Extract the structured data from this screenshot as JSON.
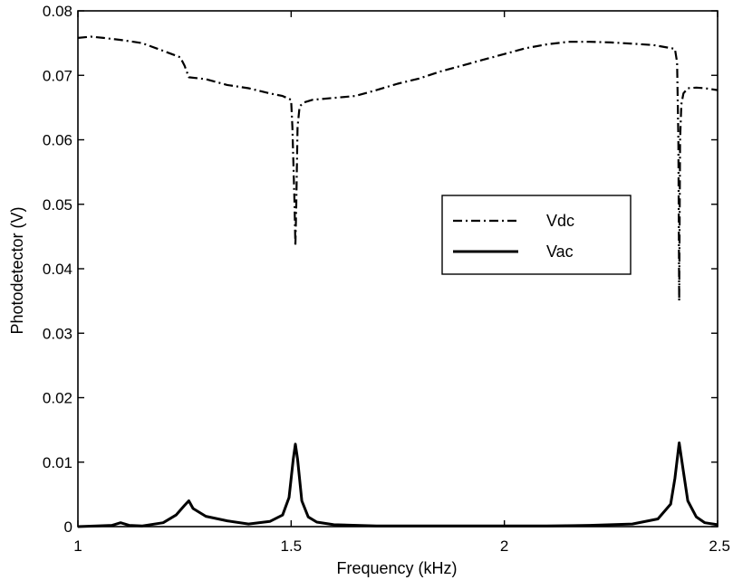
{
  "chart_data": {
    "type": "line",
    "title": "",
    "xlabel": "Frequency (kHz)",
    "ylabel": "Photodetector (V)",
    "xlim": [
      1,
      2.5
    ],
    "ylim": [
      0,
      0.08
    ],
    "xticks": [
      1,
      1.5,
      2,
      2.5
    ],
    "xtick_labels": [
      "1",
      "1.5",
      "2",
      "2.5"
    ],
    "yticks": [
      0,
      0.01,
      0.02,
      0.03,
      0.04,
      0.05,
      0.06,
      0.07,
      0.08
    ],
    "ytick_labels": [
      "0",
      "0.01",
      "0.02",
      "0.03",
      "0.04",
      "0.05",
      "0.06",
      "0.07",
      "0.08"
    ],
    "grid": false,
    "legend_position": "center-right",
    "series": [
      {
        "name": "Vdc",
        "line_style": "dash-dot",
        "color": "#000000",
        "x": [
          1.0,
          1.03,
          1.06,
          1.1,
          1.15,
          1.2,
          1.24,
          1.25,
          1.26,
          1.3,
          1.35,
          1.4,
          1.45,
          1.48,
          1.5,
          1.503,
          1.508,
          1.51,
          1.512,
          1.515,
          1.52,
          1.53,
          1.55,
          1.6,
          1.65,
          1.7,
          1.75,
          1.8,
          1.85,
          1.9,
          1.95,
          2.0,
          2.05,
          2.1,
          2.15,
          2.2,
          2.25,
          2.3,
          2.35,
          2.4,
          2.405,
          2.408,
          2.41,
          2.412,
          2.415,
          2.42,
          2.43,
          2.45,
          2.47,
          2.5
        ],
        "values": [
          0.0758,
          0.076,
          0.0758,
          0.0755,
          0.075,
          0.0738,
          0.0728,
          0.0715,
          0.0697,
          0.0694,
          0.0685,
          0.068,
          0.0672,
          0.0668,
          0.0662,
          0.062,
          0.05,
          0.0435,
          0.05,
          0.062,
          0.0652,
          0.0658,
          0.0662,
          0.0665,
          0.0668,
          0.0677,
          0.0687,
          0.0695,
          0.0706,
          0.0715,
          0.0724,
          0.0733,
          0.0742,
          0.0748,
          0.0752,
          0.0752,
          0.0751,
          0.0749,
          0.0747,
          0.0741,
          0.072,
          0.06,
          0.035,
          0.06,
          0.0655,
          0.0672,
          0.068,
          0.0681,
          0.068,
          0.0677
        ]
      },
      {
        "name": "Vac",
        "line_style": "solid",
        "color": "#000000",
        "x": [
          1.0,
          1.08,
          1.1,
          1.12,
          1.15,
          1.2,
          1.23,
          1.25,
          1.26,
          1.27,
          1.3,
          1.35,
          1.4,
          1.45,
          1.48,
          1.495,
          1.505,
          1.51,
          1.515,
          1.525,
          1.54,
          1.56,
          1.6,
          1.7,
          1.8,
          1.9,
          2.0,
          2.1,
          2.2,
          2.3,
          2.36,
          2.39,
          2.4,
          2.41,
          2.42,
          2.43,
          2.45,
          2.47,
          2.5
        ],
        "values": [
          0.0,
          0.0002,
          0.0006,
          0.0002,
          0.0001,
          0.0006,
          0.0018,
          0.0033,
          0.004,
          0.0028,
          0.0016,
          0.0009,
          0.0004,
          0.0008,
          0.0018,
          0.0045,
          0.0105,
          0.0128,
          0.0105,
          0.004,
          0.0015,
          0.0007,
          0.0003,
          0.0001,
          0.0001,
          0.0001,
          0.0001,
          0.0001,
          0.0002,
          0.0004,
          0.0012,
          0.0035,
          0.0075,
          0.013,
          0.0085,
          0.004,
          0.0015,
          0.0006,
          0.0003
        ]
      }
    ]
  }
}
